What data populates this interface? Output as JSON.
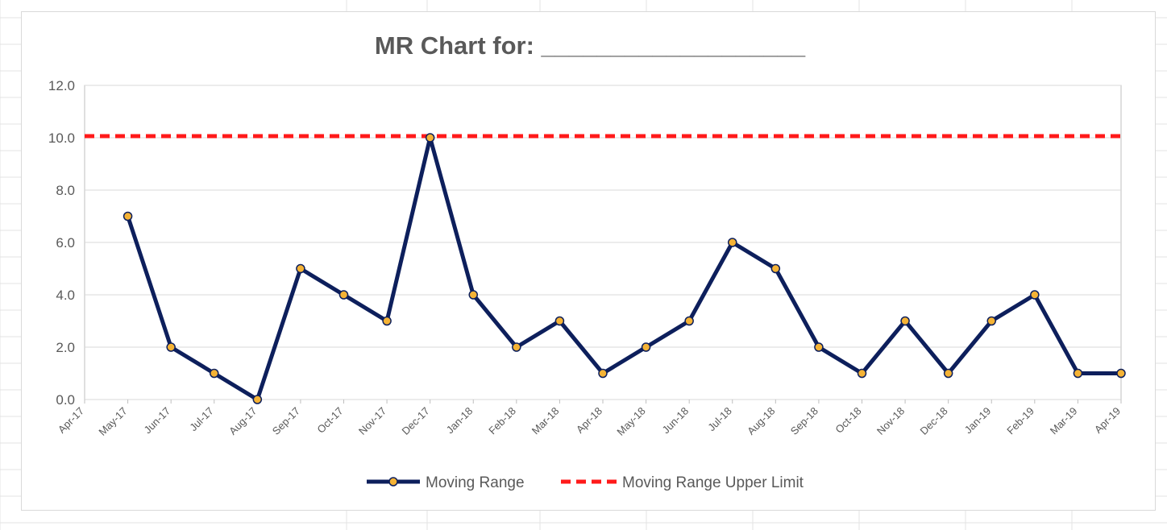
{
  "chart_data": {
    "type": "line",
    "title": "MR Chart for: ___________________",
    "xlabel": "",
    "ylabel": "",
    "categories": [
      "Apr-17",
      "May-17",
      "Jun-17",
      "Jul-17",
      "Aug-17",
      "Sep-17",
      "Oct-17",
      "Nov-17",
      "Dec-17",
      "Jan-18",
      "Feb-18",
      "Mar-18",
      "Apr-18",
      "May-18",
      "Jun-18",
      "Jul-18",
      "Aug-18",
      "Sep-18",
      "Oct-18",
      "Nov-18",
      "Dec-18",
      "Jan-19",
      "Feb-19",
      "Mar-19",
      "Apr-19"
    ],
    "ylim": [
      0,
      12
    ],
    "yticks": [
      "0.0",
      "2.0",
      "4.0",
      "6.0",
      "8.0",
      "10.0",
      "12.0"
    ],
    "grid": true,
    "legend_position": "bottom",
    "series": [
      {
        "name": "Moving Range",
        "color": "#0d1f5c",
        "marker_color": "#f5b335",
        "values": [
          null,
          7,
          2,
          1,
          0,
          5,
          4,
          3,
          10,
          4,
          2,
          3,
          1,
          2,
          3,
          6,
          5,
          2,
          1,
          3,
          1,
          3,
          4,
          1,
          1
        ]
      },
      {
        "name": "Moving Range Upper Limit",
        "color": "#ff1a1a",
        "dashed": true,
        "values": [
          10.06,
          10.06,
          10.06,
          10.06,
          10.06,
          10.06,
          10.06,
          10.06,
          10.06,
          10.06,
          10.06,
          10.06,
          10.06,
          10.06,
          10.06,
          10.06,
          10.06,
          10.06,
          10.06,
          10.06,
          10.06,
          10.06,
          10.06,
          10.06,
          10.06
        ]
      }
    ]
  }
}
